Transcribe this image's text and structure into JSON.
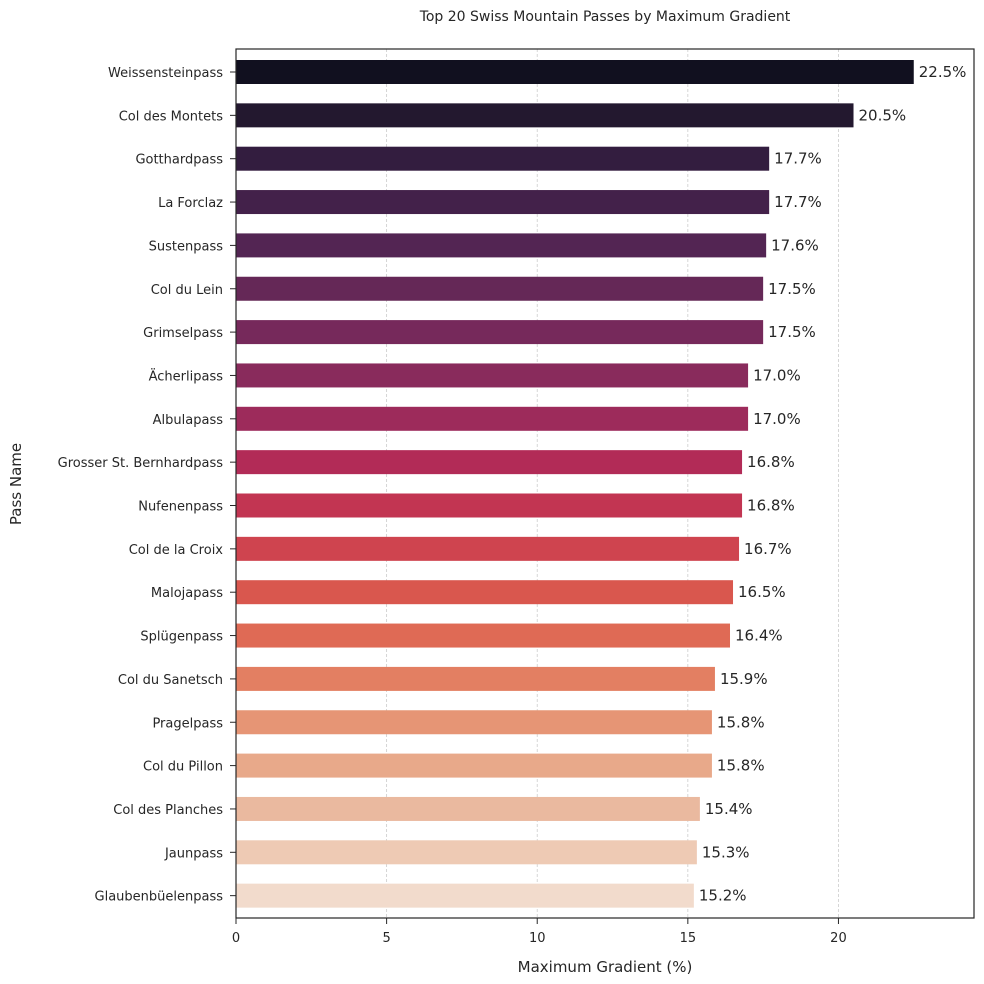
{
  "chart_data": {
    "type": "bar",
    "orientation": "horizontal",
    "title": "Top 20 Swiss Mountain Passes by Maximum Gradient",
    "xlabel": "Maximum Gradient (%)",
    "ylabel": "Pass Name",
    "xlim": [
      0,
      24.5
    ],
    "xticks": [
      0,
      5,
      10,
      15,
      20
    ],
    "grid": "vertical dashed",
    "value_label_suffix": "%",
    "categories": [
      "Weissensteinpass",
      "Col des Montets",
      "Gotthardpass",
      "La Forclaz",
      "Sustenpass",
      "Col du Lein",
      "Grimselpass",
      "Ächerlipass",
      "Albulapass",
      "Grosser St. Bernhardpass",
      "Nufenenpass",
      "Col de la Croix",
      "Malojapass",
      "Splügenpass",
      "Col du Sanetsch",
      "Pragelpass",
      "Col du Pillon",
      "Col des Planches",
      "Jaunpass",
      "Glaubenbüelenpass"
    ],
    "values": [
      22.5,
      20.5,
      17.7,
      17.7,
      17.6,
      17.5,
      17.5,
      17.0,
      17.0,
      16.8,
      16.8,
      16.7,
      16.5,
      16.4,
      15.9,
      15.8,
      15.8,
      15.4,
      15.3,
      15.2
    ],
    "value_labels": [
      "22.5%",
      "20.5%",
      "17.7%",
      "17.7%",
      "17.6%",
      "17.5%",
      "17.5%",
      "17.0%",
      "17.0%",
      "16.8%",
      "16.8%",
      "16.7%",
      "16.5%",
      "16.4%",
      "15.9%",
      "15.8%",
      "15.8%",
      "15.4%",
      "15.3%",
      "15.2%"
    ],
    "colors": [
      "#11101f",
      "#23182f",
      "#331d3f",
      "#43214a",
      "#532553",
      "#652857",
      "#76295b",
      "#892b5c",
      "#9d2b5b",
      "#b22b57",
      "#c23552",
      "#cf444f",
      "#d9574e",
      "#df6a55",
      "#e37f62",
      "#e69575",
      "#e8a98a",
      "#eab99f",
      "#eecab4",
      "#f2dbcc"
    ]
  }
}
